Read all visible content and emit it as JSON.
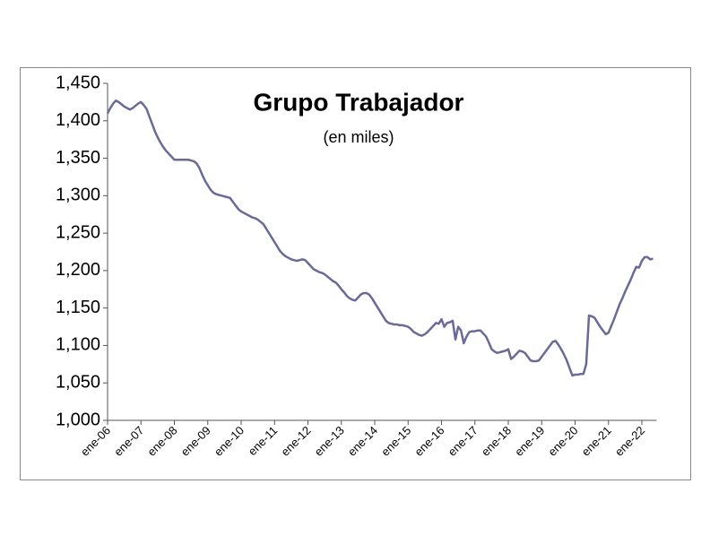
{
  "chart_data": {
    "type": "line",
    "title": "Grupo Trabajador",
    "subtitle": "(en miles)",
    "categories": [
      "ene-06",
      null,
      null,
      null,
      null,
      null,
      null,
      null,
      null,
      null,
      null,
      null,
      "ene-07",
      null,
      null,
      null,
      null,
      null,
      null,
      null,
      null,
      null,
      null,
      null,
      "ene-08",
      null,
      null,
      null,
      null,
      null,
      null,
      null,
      null,
      null,
      null,
      null,
      "ene-09",
      null,
      null,
      null,
      null,
      null,
      null,
      null,
      null,
      null,
      null,
      null,
      "ene-10",
      null,
      null,
      null,
      null,
      null,
      null,
      null,
      null,
      null,
      null,
      null,
      "ene-11",
      null,
      null,
      null,
      null,
      null,
      null,
      null,
      null,
      null,
      null,
      null,
      "ene-12",
      null,
      null,
      null,
      null,
      null,
      null,
      null,
      null,
      null,
      null,
      null,
      "ene-13",
      null,
      null,
      null,
      null,
      null,
      null,
      null,
      null,
      null,
      null,
      null,
      "ene-14",
      null,
      null,
      null,
      null,
      null,
      null,
      null,
      null,
      null,
      null,
      null,
      "ene-15",
      null,
      null,
      null,
      null,
      null,
      null,
      null,
      null,
      null,
      null,
      null,
      "ene-16",
      null,
      null,
      null,
      null,
      null,
      null,
      null,
      null,
      null,
      null,
      null,
      "ene-17",
      null,
      null,
      null,
      null,
      null,
      null,
      null,
      null,
      null,
      null,
      null,
      "ene-18",
      null,
      null,
      null,
      null,
      null,
      null,
      null,
      null,
      null,
      null,
      null,
      "ene-19",
      null,
      null,
      null,
      null,
      null,
      null,
      null,
      null,
      null,
      null,
      null,
      "ene-20",
      null,
      null,
      null,
      null,
      null,
      null,
      null,
      null,
      null,
      null,
      null,
      "ene-21",
      null,
      null,
      null,
      null,
      null,
      null,
      null,
      null,
      null,
      null,
      null,
      "ene-22",
      null,
      null,
      null,
      null
    ],
    "series": [
      {
        "color": "#6a6a98",
        "values": [
          1410,
          1417,
          1423,
          1427,
          1425,
          1422,
          1419,
          1417,
          1415,
          1417,
          1420,
          1423,
          1425,
          1421,
          1416,
          1406,
          1396,
          1386,
          1378,
          1371,
          1365,
          1360,
          1356,
          1352,
          1348,
          1348,
          1348,
          1348,
          1348,
          1348,
          1347,
          1346,
          1343,
          1337,
          1328,
          1320,
          1314,
          1308,
          1304,
          1302,
          1301,
          1300,
          1299,
          1298,
          1297,
          1292,
          1287,
          1282,
          1279,
          1277,
          1275,
          1273,
          1271,
          1270,
          1268,
          1265,
          1262,
          1256,
          1250,
          1244,
          1238,
          1232,
          1226,
          1222,
          1219,
          1217,
          1215,
          1214,
          1213,
          1214,
          1215,
          1214,
          1210,
          1206,
          1202,
          1200,
          1198,
          1197,
          1195,
          1192,
          1189,
          1186,
          1184,
          1180,
          1175,
          1171,
          1166,
          1163,
          1161,
          1160,
          1164,
          1168,
          1170,
          1170,
          1168,
          1163,
          1157,
          1151,
          1145,
          1139,
          1133,
          1130,
          1129,
          1128,
          1128,
          1127,
          1127,
          1126,
          1125,
          1122,
          1118,
          1116,
          1114,
          1113,
          1115,
          1118,
          1122,
          1126,
          1130,
          1129,
          1135,
          1125,
          1130,
          1131,
          1133,
          1108,
          1125,
          1120,
          1103,
          1112,
          1118,
          1119,
          1119,
          1120,
          1120,
          1116,
          1112,
          1104,
          1095,
          1092,
          1090,
          1091,
          1092,
          1093,
          1095,
          1082,
          1085,
          1089,
          1093,
          1092,
          1090,
          1085,
          1080,
          1079,
          1079,
          1080,
          1085,
          1090,
          1095,
          1100,
          1105,
          1106,
          1101,
          1095,
          1088,
          1080,
          1070,
          1060,
          1061,
          1061,
          1062,
          1062,
          1075,
          1140,
          1139,
          1137,
          1131,
          1125,
          1120,
          1115,
          1117,
          1126,
          1135,
          1145,
          1155,
          1163,
          1172,
          1180,
          1188,
          1197,
          1205,
          1204,
          1213,
          1218,
          1218,
          1215,
          1216
        ]
      }
    ],
    "ylim": [
      1000,
      1450
    ],
    "yticks": [
      {
        "value": 1000,
        "label": "1,000"
      },
      {
        "value": 1050,
        "label": "1,050"
      },
      {
        "value": 1100,
        "label": "1,100"
      },
      {
        "value": 1150,
        "label": "1,150"
      },
      {
        "value": 1200,
        "label": "1,200"
      },
      {
        "value": 1250,
        "label": "1,250"
      },
      {
        "value": 1300,
        "label": "1,300"
      },
      {
        "value": 1350,
        "label": "1,350"
      },
      {
        "value": 1400,
        "label": "1,400"
      },
      {
        "value": 1450,
        "label": "1,450"
      }
    ],
    "grid": false
  }
}
